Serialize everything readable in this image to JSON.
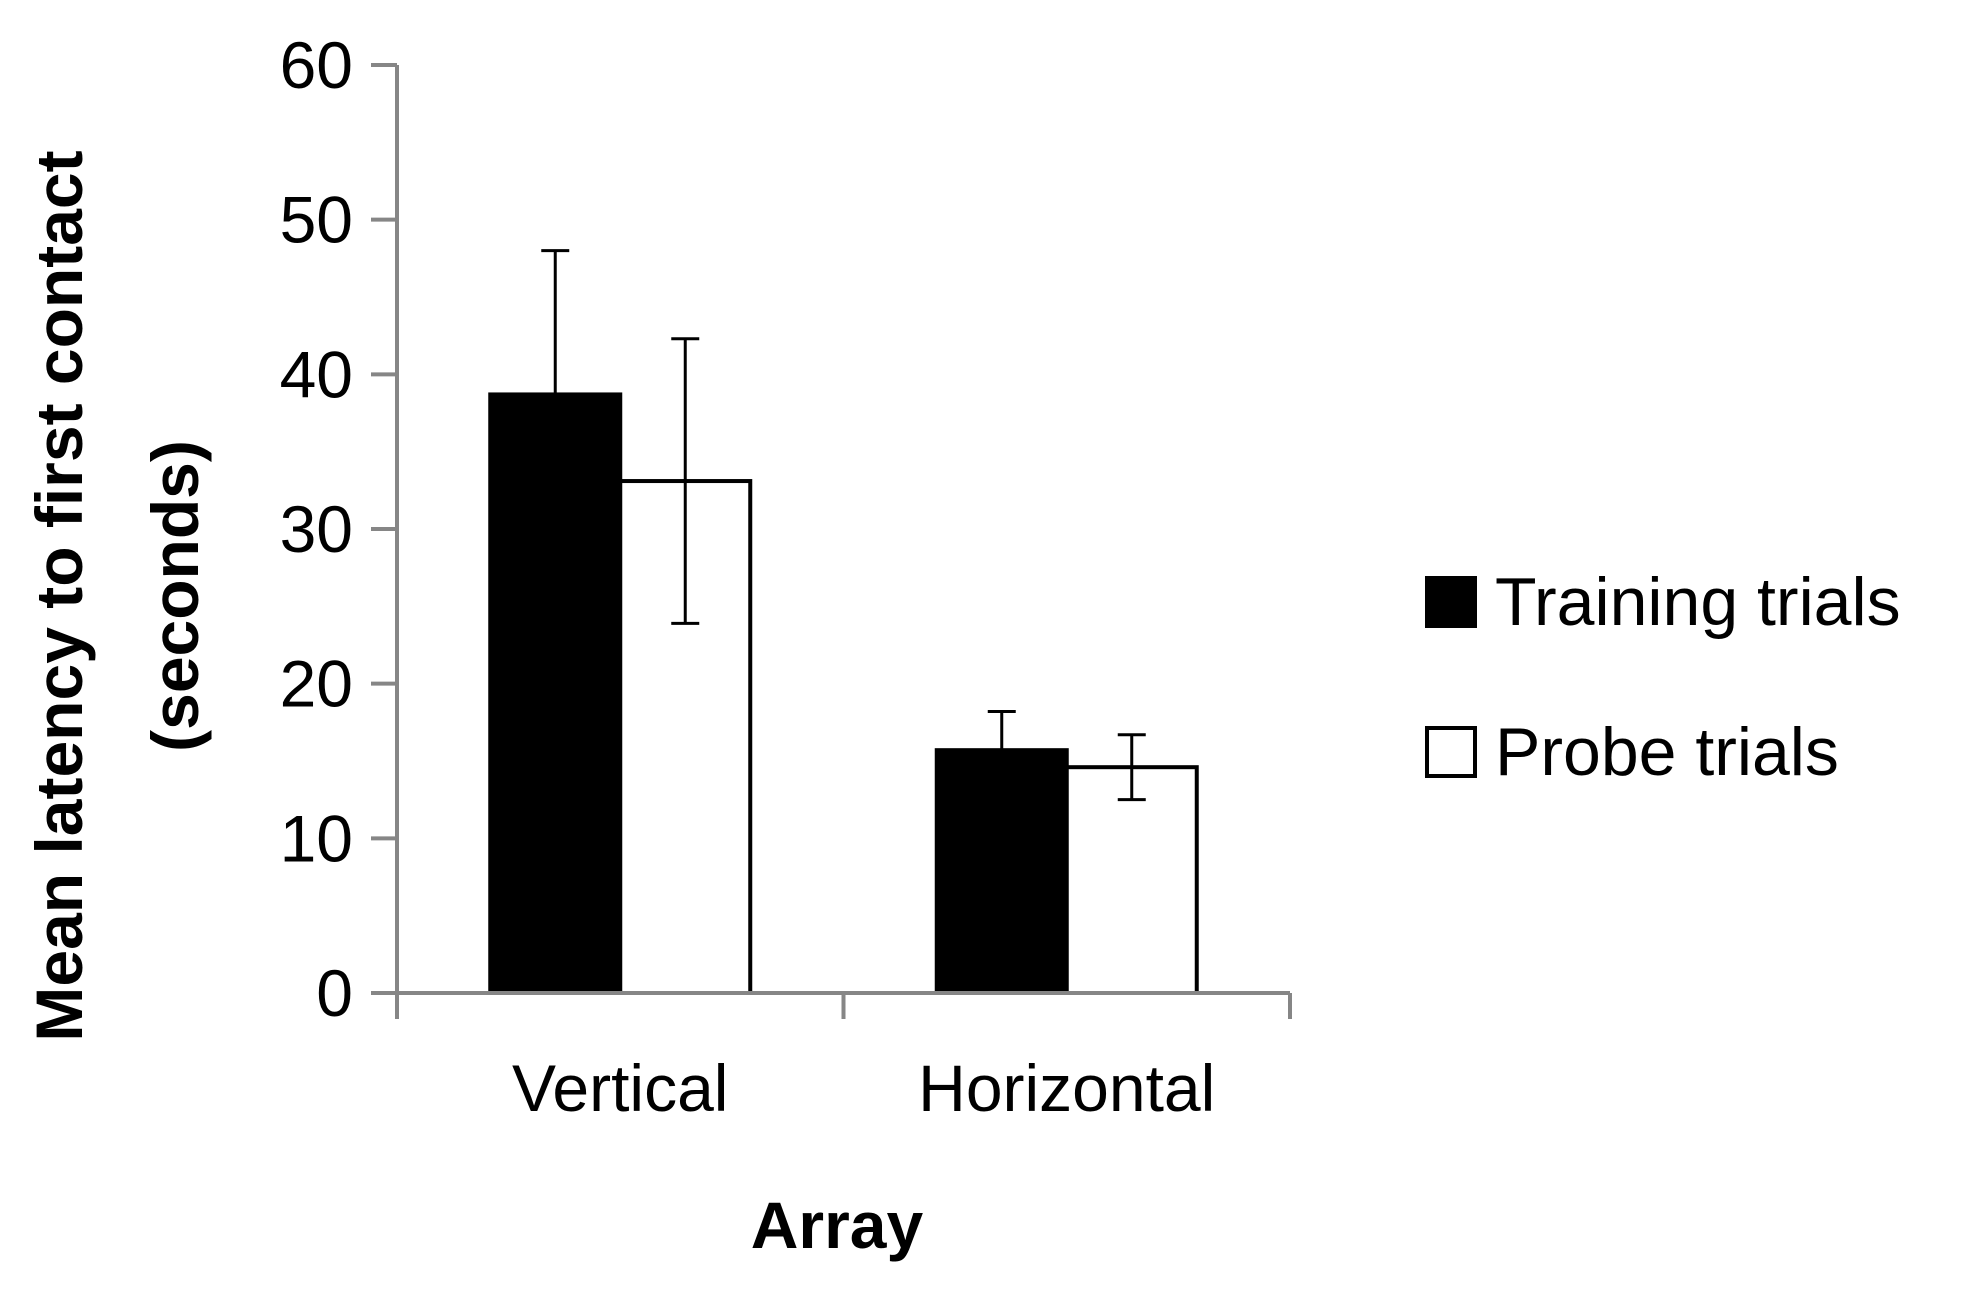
{
  "chart_data": {
    "type": "bar",
    "categories": [
      "Vertical",
      "Horizontal"
    ],
    "series": [
      {
        "name": "Training trials",
        "values": [
          38.7,
          15.7
        ],
        "error": [
          9.3,
          2.5
        ],
        "color": "#000000"
      },
      {
        "name": "Probe trials",
        "values": [
          33.1,
          14.6
        ],
        "error": [
          9.2,
          2.1
        ],
        "color": "#ffffff"
      }
    ],
    "title": "",
    "xlabel": "Array",
    "ylabel_lines": [
      "Mean latency to first contact",
      "(seconds)"
    ],
    "ylim": [
      0,
      60
    ],
    "yticks": [
      0,
      10,
      20,
      30,
      40,
      50,
      60
    ],
    "grid": false,
    "legend_position": "right",
    "axis_color": "#868686",
    "outline_color": "#000000"
  }
}
